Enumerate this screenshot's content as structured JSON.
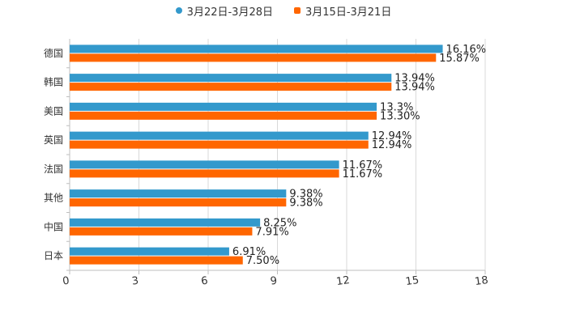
{
  "chart_data": {
    "type": "bar",
    "orientation": "horizontal",
    "categories": [
      "德国",
      "韩国",
      "美国",
      "英国",
      "法国",
      "其他",
      "中国",
      "日本"
    ],
    "series": [
      {
        "name": "3月22日-3月28日",
        "color": "#3399cc",
        "values": [
          16.16,
          13.94,
          13.3,
          12.94,
          11.67,
          9.38,
          8.25,
          6.91
        ],
        "labels": [
          "16.16%",
          "13.94%",
          "13.3%",
          "12.94%",
          "11.67%",
          "9.38%",
          "8.25%",
          "6.91%"
        ]
      },
      {
        "name": "3月15日-3月21日",
        "color": "#ff6600",
        "values": [
          15.87,
          13.94,
          13.3,
          12.94,
          11.67,
          9.38,
          7.91,
          7.5
        ],
        "labels": [
          "15.87%",
          "13.94%",
          "13.30%",
          "12.94%",
          "11.67%",
          "9.38%",
          "7.91%",
          "7.50%"
        ]
      }
    ],
    "x_ticks": [
      "0",
      "3",
      "6",
      "9",
      "12",
      "15",
      "18"
    ],
    "xlim": [
      0,
      18
    ],
    "grid": true,
    "legend_position": "top-center",
    "title": "",
    "xlabel": "",
    "ylabel": ""
  }
}
